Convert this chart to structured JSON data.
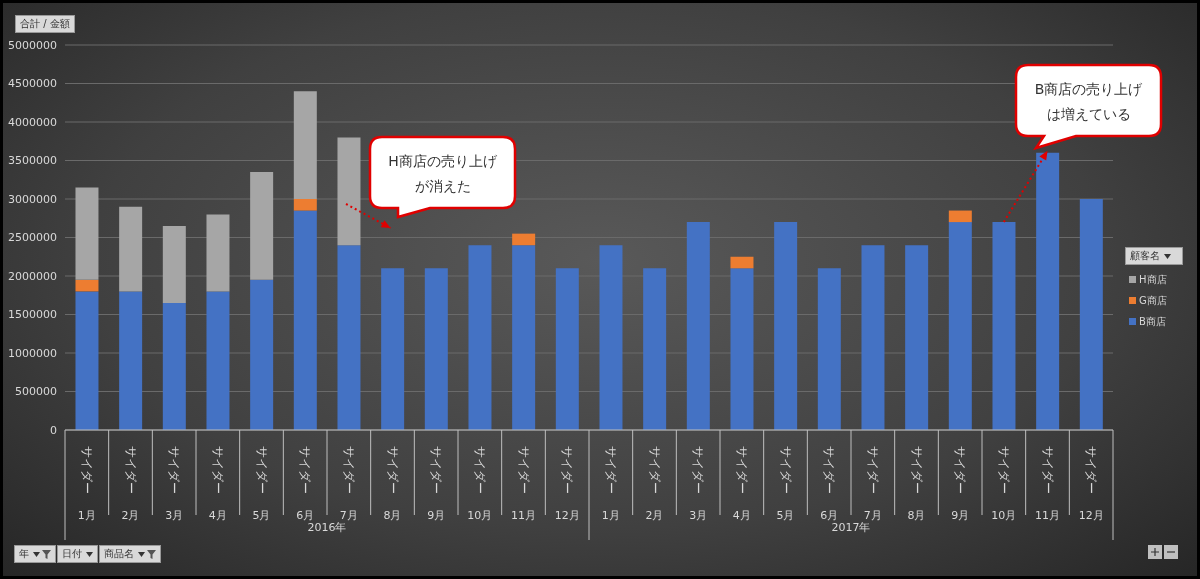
{
  "chart_data": {
    "type": "bar",
    "stacked": true,
    "ylabel": "合計 / 金額",
    "legend_title": "顧客名",
    "legend": "right",
    "grid": "y",
    "categories": [
      "サイダー\n1月",
      "サイダー\n2月",
      "サイダー\n3月",
      "サイダー\n4月",
      "サイダー\n5月",
      "サイダー\n6月",
      "サイダー\n7月",
      "サイダー\n8月",
      "サイダー\n9月",
      "サイダー\n10月",
      "サイダー\n11月",
      "サイダー\n12月",
      "サイダー\n1月",
      "サイダー\n2月",
      "サイダー\n3月",
      "サイダー\n4月",
      "サイダー\n5月",
      "サイダー\n6月",
      "サイダー\n7月",
      "サイダー\n8月",
      "サイダー\n9月",
      "サイダー\n10月",
      "サイダー\n11月",
      "サイダー\n12月"
    ],
    "series": [
      {
        "name": "B商店",
        "color": "#4472c4",
        "values": [
          1800000,
          1800000,
          1650000,
          1800000,
          1950000,
          2850000,
          2400000,
          2100000,
          2100000,
          2400000,
          2400000,
          2100000,
          2400000,
          2100000,
          2700000,
          2100000,
          2700000,
          2100000,
          2400000,
          2400000,
          2700000,
          2700000,
          3600000,
          3000000
        ]
      },
      {
        "name": "G商店",
        "color": "#ed7d31",
        "values": [
          150000,
          null,
          null,
          null,
          null,
          150000,
          null,
          null,
          null,
          null,
          150000,
          null,
          null,
          null,
          null,
          150000,
          null,
          null,
          null,
          null,
          150000,
          null,
          null,
          null
        ]
      },
      {
        "name": "H商店",
        "color": "#a6a6a6",
        "values": [
          1200000,
          1100000,
          1000000,
          1000000,
          1400000,
          1400000,
          1400000,
          null,
          null,
          null,
          null,
          null,
          null,
          null,
          null,
          null,
          null,
          null,
          null,
          null,
          null,
          null,
          null,
          null
        ]
      }
    ],
    "ylim": [
      0,
      5000000
    ],
    "yticks": [
      0,
      500000,
      1000000,
      1500000,
      2000000,
      2500000,
      3000000,
      3500000,
      4000000,
      4500000,
      5000000
    ],
    "annotations": [
      "H商店の売り上げが消えた",
      "B商店の売り上げは増えている",
      "2016年",
      "2017年",
      "年",
      "日付",
      "商品名"
    ]
  }
}
